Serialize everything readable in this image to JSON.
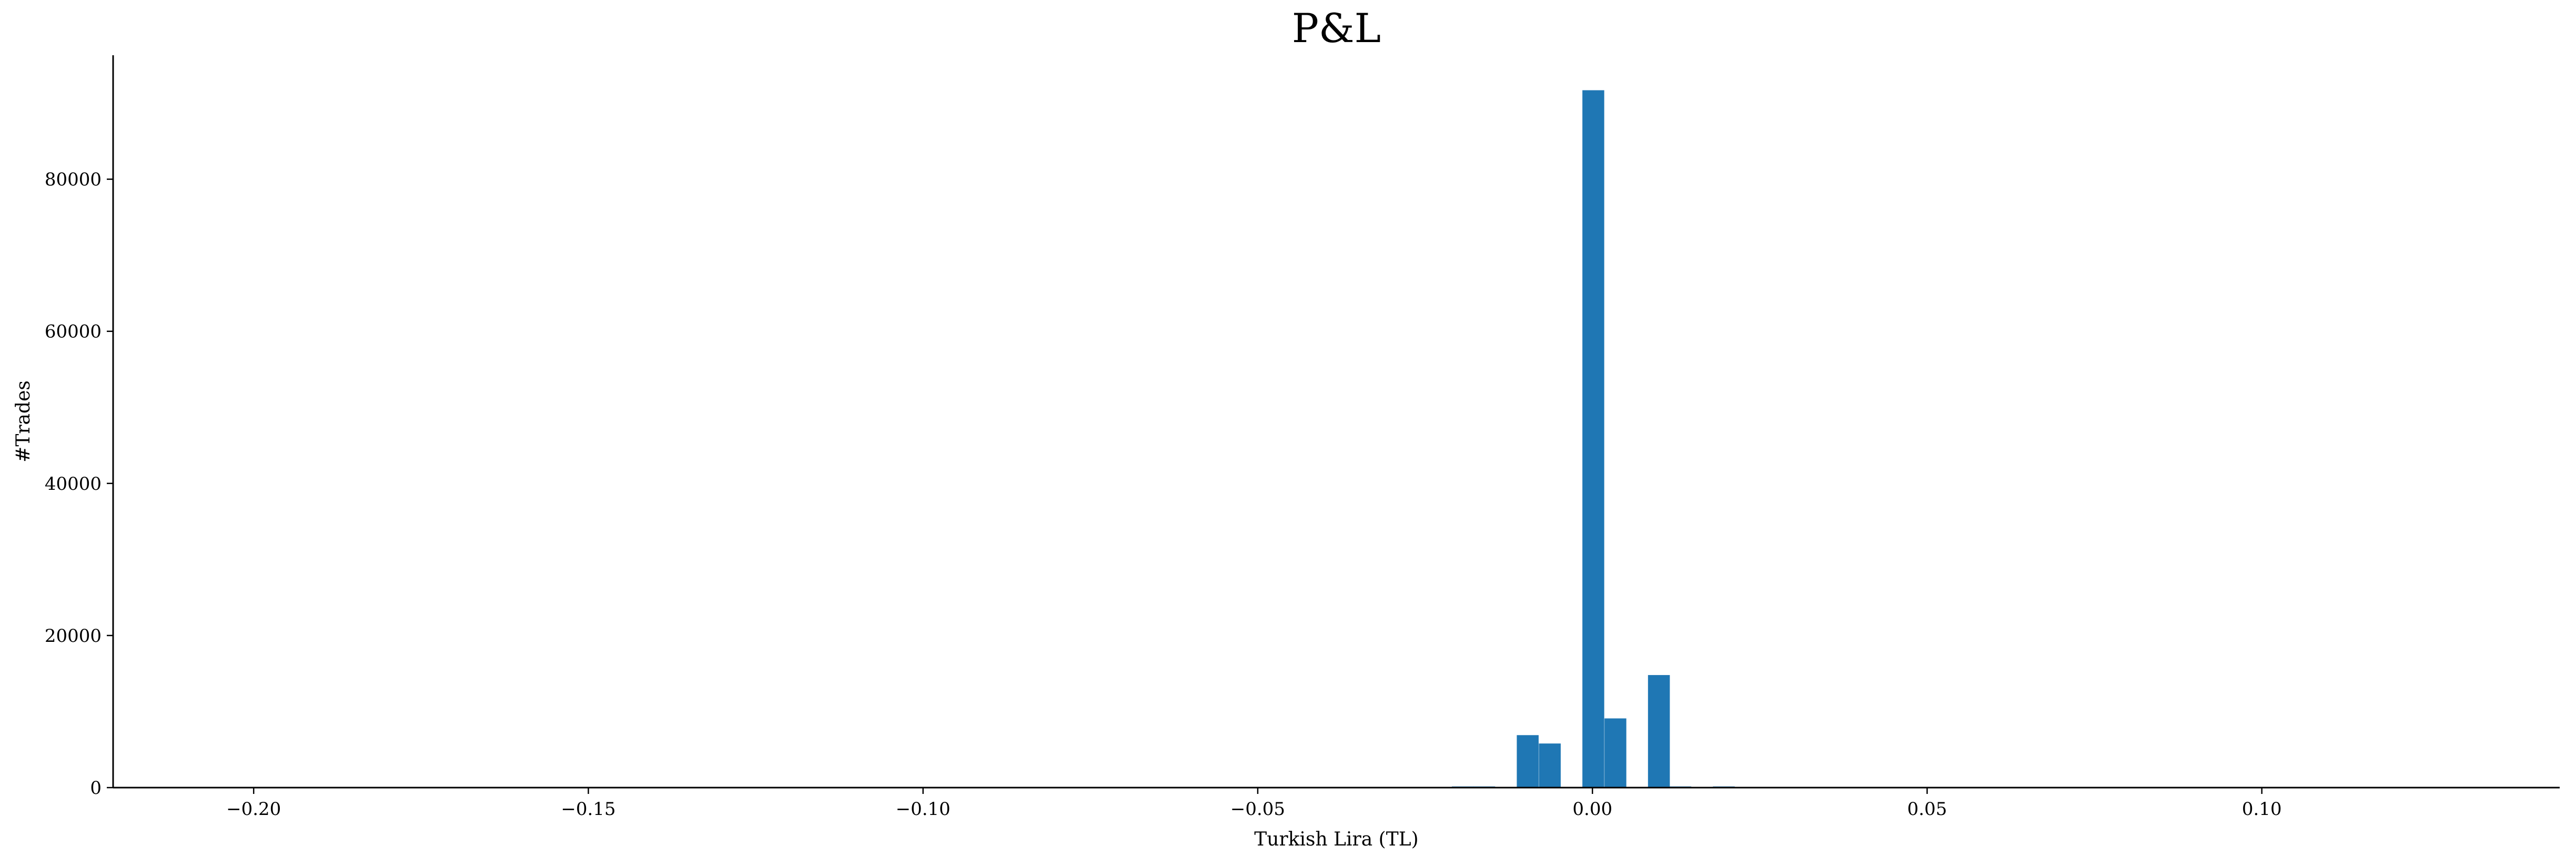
{
  "chart_data": {
    "type": "bar",
    "title": "P&L",
    "xlabel": "Turkish Lira (TL)",
    "ylabel": "#Trades",
    "xlim": [
      -0.221,
      0.1445
    ],
    "ylim": [
      0,
      96300
    ],
    "xticks": [
      -0.2,
      -0.15,
      -0.1,
      -0.05,
      0.0,
      0.05,
      0.1
    ],
    "xtick_labels": [
      "−0.20",
      "−0.15",
      "−0.10",
      "−0.05",
      "0.00",
      "0.05",
      "0.10"
    ],
    "yticks": [
      0,
      20000,
      40000,
      60000,
      80000
    ],
    "ytick_labels": [
      "0",
      "20000",
      "40000",
      "60000",
      "80000"
    ],
    "bin_width": 0.003262,
    "bins": [
      {
        "left": -0.021,
        "count": 150
      },
      {
        "left": -0.0178,
        "count": 150
      },
      {
        "left": -0.0113,
        "count": 6900
      },
      {
        "left": -0.008,
        "count": 5800
      },
      {
        "left": -0.0015,
        "count": 91700
      },
      {
        "left": 0.0018,
        "count": 9100
      },
      {
        "left": 0.0083,
        "count": 14800
      },
      {
        "left": 0.0115,
        "count": 150
      },
      {
        "left": 0.018,
        "count": 150
      }
    ],
    "bar_color": "#1f77b4",
    "grid": false,
    "legend": "none"
  }
}
